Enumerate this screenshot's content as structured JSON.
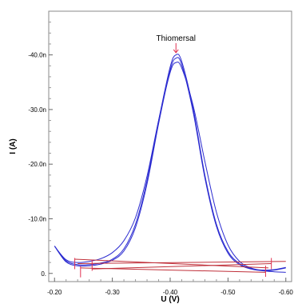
{
  "chart_data": {
    "type": "line",
    "title": "",
    "xlabel": "U (V)",
    "ylabel": "I (A)",
    "x_reversed": true,
    "y_reversed": true,
    "xlim": [
      -0.19,
      -0.61
    ],
    "ylim": [
      1.5,
      -48
    ],
    "x_ticks": [
      {
        "value": -0.2,
        "label": "-0.20"
      },
      {
        "value": -0.3,
        "label": "-0.30"
      },
      {
        "value": -0.4,
        "label": "-0.40"
      },
      {
        "value": -0.5,
        "label": "-0.50"
      },
      {
        "value": -0.6,
        "label": "-0.60"
      }
    ],
    "y_ticks": [
      {
        "value": 0,
        "label": "0."
      },
      {
        "value": -10,
        "label": "-10.0n"
      },
      {
        "value": -20,
        "label": "-20.0n"
      },
      {
        "value": -30,
        "label": "-30.0n"
      },
      {
        "value": -40,
        "label": "-40.0n"
      }
    ],
    "annotation": {
      "label": "Thiomersal",
      "x": -0.41,
      "y": -40.4
    },
    "colors": {
      "series": "#2b2bd0",
      "baseline": "#c0303a",
      "marker": "#e03050"
    },
    "series": [
      {
        "color": "#2b2bd0",
        "points": [
          [
            -0.2,
            -5.0
          ],
          [
            -0.22,
            -2.3
          ],
          [
            -0.24,
            -1.6
          ],
          [
            -0.26,
            -1.6
          ],
          [
            -0.28,
            -1.9
          ],
          [
            -0.3,
            -2.6
          ],
          [
            -0.32,
            -4.5
          ],
          [
            -0.34,
            -9.0
          ],
          [
            -0.36,
            -17.0
          ],
          [
            -0.38,
            -28.0
          ],
          [
            -0.4,
            -37.8
          ],
          [
            -0.41,
            -40.0
          ],
          [
            -0.42,
            -38.8
          ],
          [
            -0.44,
            -30.0
          ],
          [
            -0.46,
            -18.0
          ],
          [
            -0.48,
            -9.0
          ],
          [
            -0.5,
            -4.0
          ],
          [
            -0.52,
            -1.8
          ],
          [
            -0.54,
            -0.9
          ],
          [
            -0.56,
            -0.6
          ],
          [
            -0.58,
            -0.7
          ],
          [
            -0.6,
            -1.1
          ]
        ]
      },
      {
        "color": "#2b2bd0",
        "points": [
          [
            -0.2,
            -5.0
          ],
          [
            -0.22,
            -2.1
          ],
          [
            -0.24,
            -1.4
          ],
          [
            -0.26,
            -1.4
          ],
          [
            -0.28,
            -1.7
          ],
          [
            -0.3,
            -2.4
          ],
          [
            -0.32,
            -4.1
          ],
          [
            -0.34,
            -8.4
          ],
          [
            -0.36,
            -16.4
          ],
          [
            -0.38,
            -27.4
          ],
          [
            -0.4,
            -37.2
          ],
          [
            -0.41,
            -39.4
          ],
          [
            -0.42,
            -38.2
          ],
          [
            -0.44,
            -29.4
          ],
          [
            -0.46,
            -17.5
          ],
          [
            -0.48,
            -8.6
          ],
          [
            -0.5,
            -3.7
          ],
          [
            -0.52,
            -1.6
          ],
          [
            -0.54,
            -0.8
          ],
          [
            -0.56,
            -0.5
          ],
          [
            -0.58,
            -0.6
          ],
          [
            -0.6,
            -1.0
          ]
        ]
      },
      {
        "color": "#2b2bd0",
        "points": [
          [
            -0.2,
            -5.0
          ],
          [
            -0.22,
            -2.5
          ],
          [
            -0.24,
            -2.0
          ],
          [
            -0.26,
            -2.2
          ],
          [
            -0.28,
            -2.7
          ],
          [
            -0.3,
            -3.8
          ],
          [
            -0.32,
            -6.0
          ],
          [
            -0.34,
            -10.2
          ],
          [
            -0.36,
            -17.8
          ],
          [
            -0.38,
            -28.0
          ],
          [
            -0.4,
            -36.8
          ],
          [
            -0.41,
            -38.6
          ],
          [
            -0.42,
            -37.6
          ],
          [
            -0.44,
            -30.6
          ],
          [
            -0.46,
            -20.5
          ],
          [
            -0.48,
            -11.2
          ],
          [
            -0.5,
            -5.2
          ],
          [
            -0.52,
            -2.2
          ],
          [
            -0.54,
            -1.0
          ],
          [
            -0.56,
            -0.5
          ],
          [
            -0.58,
            -0.3
          ],
          [
            -0.6,
            -0.2
          ]
        ]
      },
      {
        "color": "#c0303a",
        "points": [
          [
            -0.235,
            -2.6
          ],
          [
            -0.57,
            -1.0
          ]
        ]
      },
      {
        "color": "#c0303a",
        "points": [
          [
            -0.245,
            -1.0
          ],
          [
            -0.565,
            -0.2
          ]
        ]
      },
      {
        "color": "#c0303a",
        "points": [
          [
            -0.265,
            -0.8
          ],
          [
            -0.575,
            -1.8
          ]
        ]
      },
      {
        "color": "#c0303a",
        "points": [
          [
            -0.24,
            -1.8
          ],
          [
            -0.6,
            -2.2
          ]
        ]
      }
    ],
    "markers": [
      {
        "x": -0.235,
        "y": -1.8
      },
      {
        "x": -0.245,
        "y": -0.3
      },
      {
        "x": -0.265,
        "y": -1.5
      },
      {
        "x": -0.565,
        "y": -0.4
      },
      {
        "x": -0.575,
        "y": -1.8
      }
    ]
  }
}
